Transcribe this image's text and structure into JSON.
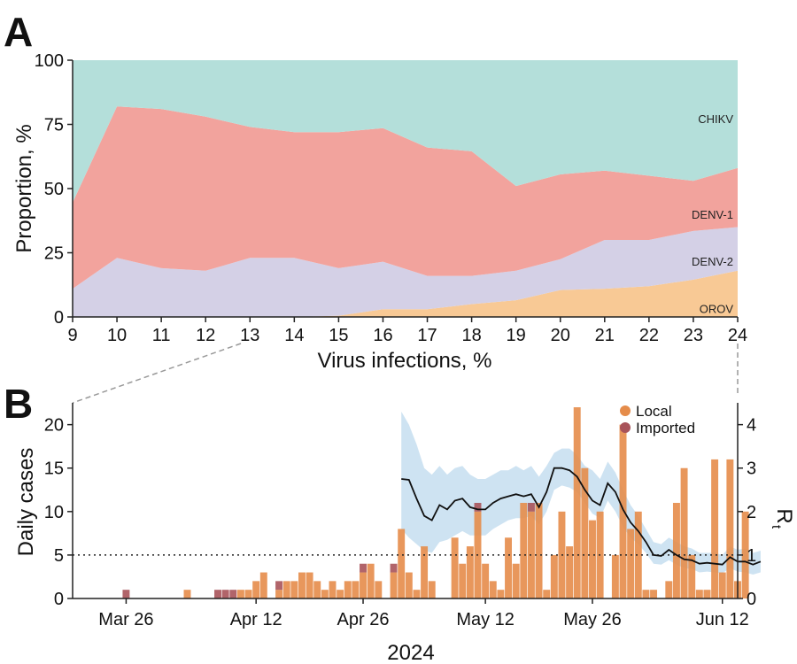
{
  "panels": {
    "a_label": "A",
    "b_label": "B"
  },
  "chart_data": [
    {
      "type": "area",
      "stacked": true,
      "panel": "A",
      "xlabel": "Virus infections, %",
      "ylabel": "Proportion, %",
      "x": [
        9,
        10,
        11,
        12,
        13,
        14,
        15,
        16,
        17,
        18,
        19,
        20,
        21,
        22,
        23,
        24
      ],
      "xticks": [
        "9",
        "10",
        "11",
        "12",
        "13",
        "14",
        "15",
        "16",
        "17",
        "18",
        "19",
        "20",
        "21",
        "22",
        "23",
        "24"
      ],
      "ylim": [
        0,
        100
      ],
      "yticks": [
        "0",
        "25",
        "50",
        "75",
        "100"
      ],
      "yticks_values": [
        0,
        25,
        50,
        75,
        100
      ],
      "series": [
        {
          "name": "OROV",
          "color": "#f8c995",
          "values": [
            0,
            0,
            0,
            0,
            0,
            0,
            0.5,
            3,
            3,
            5,
            6.5,
            10.5,
            11,
            12,
            14.5,
            18
          ]
        },
        {
          "name": "DENV-2",
          "color": "#d4d0e6",
          "values": [
            11,
            23,
            19,
            18,
            23,
            23,
            18.5,
            18.5,
            13,
            11,
            11.5,
            12,
            19,
            18,
            19,
            17
          ]
        },
        {
          "name": "DENV-1",
          "color": "#f2a39d",
          "values": [
            33.5,
            59,
            62,
            60,
            51,
            49,
            53,
            52,
            50,
            48.5,
            33,
            33,
            27,
            25,
            19.5,
            23
          ]
        },
        {
          "name": "CHIKV",
          "color": "#b4dfda",
          "values": [
            55.5,
            18,
            19,
            22,
            26,
            28,
            28,
            26.5,
            34,
            35.5,
            49,
            44.5,
            43,
            45,
            47,
            42
          ]
        }
      ]
    },
    {
      "type": "bar",
      "stacked": true,
      "panel": "B",
      "xlabel": "2024",
      "ylabel": "Daily cases",
      "y2label_main": "R",
      "y2label_sub": "t",
      "ylim": [
        0,
        22
      ],
      "yticks": [
        "0",
        "5",
        "10",
        "15",
        "20"
      ],
      "yticks_values": [
        0,
        5,
        10,
        15,
        20
      ],
      "y2lim": [
        0,
        4.4
      ],
      "y2ticks": [
        "0",
        "1",
        "2",
        "3",
        "4"
      ],
      "y2ticks_values": [
        0,
        1,
        2,
        3,
        4
      ],
      "x_start": "Mar 20",
      "day_range": [
        0,
        85
      ],
      "xticks": [
        {
          "day": 6,
          "label": "Mar 26"
        },
        {
          "day": 23,
          "label": "Apr 12"
        },
        {
          "day": 37,
          "label": "Apr 26"
        },
        {
          "day": 53,
          "label": "May 12"
        },
        {
          "day": 67,
          "label": "May 26"
        },
        {
          "day": 84,
          "label": "Jun 12"
        }
      ],
      "legend": [
        {
          "name": "Local",
          "color": "#e58c4a"
        },
        {
          "name": "Imported",
          "color": "#a8535a"
        }
      ],
      "series": [
        {
          "name": "Local",
          "color": "#e58c4a",
          "values": [
            0,
            0,
            0,
            0,
            0,
            0,
            0,
            0,
            0,
            0,
            0,
            0,
            0,
            0,
            1,
            0,
            0,
            0,
            0,
            0,
            0,
            1,
            1,
            2,
            3,
            0,
            1,
            2,
            2,
            3,
            3,
            2,
            1,
            2,
            1,
            2,
            2,
            3,
            4,
            2,
            0,
            3,
            8,
            3,
            1,
            6,
            2,
            0,
            0,
            7,
            4,
            6,
            10,
            4,
            2,
            1,
            7,
            4,
            11,
            10,
            11,
            1,
            5,
            10,
            6,
            22,
            15,
            9,
            10,
            0,
            5,
            20,
            8,
            10,
            1,
            1,
            0,
            2,
            11,
            15,
            5,
            1,
            1,
            16,
            3,
            16,
            2,
            10
          ]
        },
        {
          "name": "Imported",
          "color": "#a8535a",
          "values": [
            0,
            0,
            0,
            0,
            0,
            0,
            1,
            0,
            0,
            0,
            0,
            0,
            0,
            0,
            0,
            0,
            0,
            0,
            1,
            1,
            1,
            0,
            0,
            0,
            0,
            0,
            1,
            0,
            0,
            0,
            0,
            0,
            0,
            0,
            0,
            0,
            0,
            1,
            0,
            0,
            0,
            1,
            0,
            0,
            0,
            0,
            0,
            0,
            0,
            0,
            0,
            0,
            1,
            0,
            0,
            0,
            0,
            0,
            0,
            1,
            0,
            0,
            0,
            0,
            0,
            0,
            0,
            0,
            0,
            0,
            0,
            0,
            0,
            0,
            0,
            0,
            0,
            0,
            0,
            0,
            0,
            0,
            0,
            0,
            0,
            0,
            0,
            0
          ]
        }
      ],
      "rt": {
        "name": "Rt",
        "start_day": 42,
        "values": [
          2.75,
          2.73,
          2.3,
          1.9,
          1.8,
          2.15,
          2.05,
          2.25,
          2.3,
          2.1,
          2.05,
          2.05,
          2.2,
          2.3,
          2.35,
          2.4,
          2.35,
          2.4,
          2.1,
          2.45,
          3.0,
          3.0,
          2.95,
          2.8,
          2.5,
          2.25,
          2.15,
          2.65,
          2.45,
          2.05,
          1.75,
          1.55,
          1.3,
          1.0,
          0.98,
          1.12,
          1.0,
          0.9,
          0.88,
          0.8,
          0.82,
          0.8,
          0.78,
          0.95,
          0.85,
          0.85,
          0.78,
          0.85
        ],
        "lower": [
          1.6,
          1.4,
          1.25,
          1.1,
          1.05,
          1.3,
          1.35,
          1.45,
          1.55,
          1.45,
          1.45,
          1.45,
          1.6,
          1.7,
          1.8,
          1.85,
          1.85,
          1.9,
          1.7,
          2.0,
          2.5,
          2.6,
          2.55,
          2.45,
          2.2,
          1.95,
          1.85,
          2.25,
          2.0,
          1.65,
          1.4,
          1.25,
          1.05,
          0.8,
          0.78,
          0.88,
          0.78,
          0.7,
          0.68,
          0.6,
          0.62,
          0.6,
          0.58,
          0.7,
          0.62,
          0.6,
          0.55,
          0.6
        ],
        "upper": [
          4.3,
          4.0,
          3.55,
          3.0,
          2.85,
          3.05,
          2.85,
          3.0,
          3.05,
          2.85,
          2.75,
          2.75,
          2.85,
          2.95,
          2.95,
          3.05,
          2.95,
          3.05,
          2.8,
          3.05,
          3.35,
          3.45,
          3.45,
          3.3,
          3.05,
          2.95,
          2.75,
          3.15,
          2.9,
          2.5,
          2.15,
          1.9,
          1.6,
          1.3,
          1.25,
          1.4,
          1.3,
          1.2,
          1.15,
          1.05,
          1.05,
          1.05,
          1.0,
          1.2,
          1.12,
          1.15,
          1.05,
          1.1
        ],
        "threshold": 1
      }
    }
  ]
}
